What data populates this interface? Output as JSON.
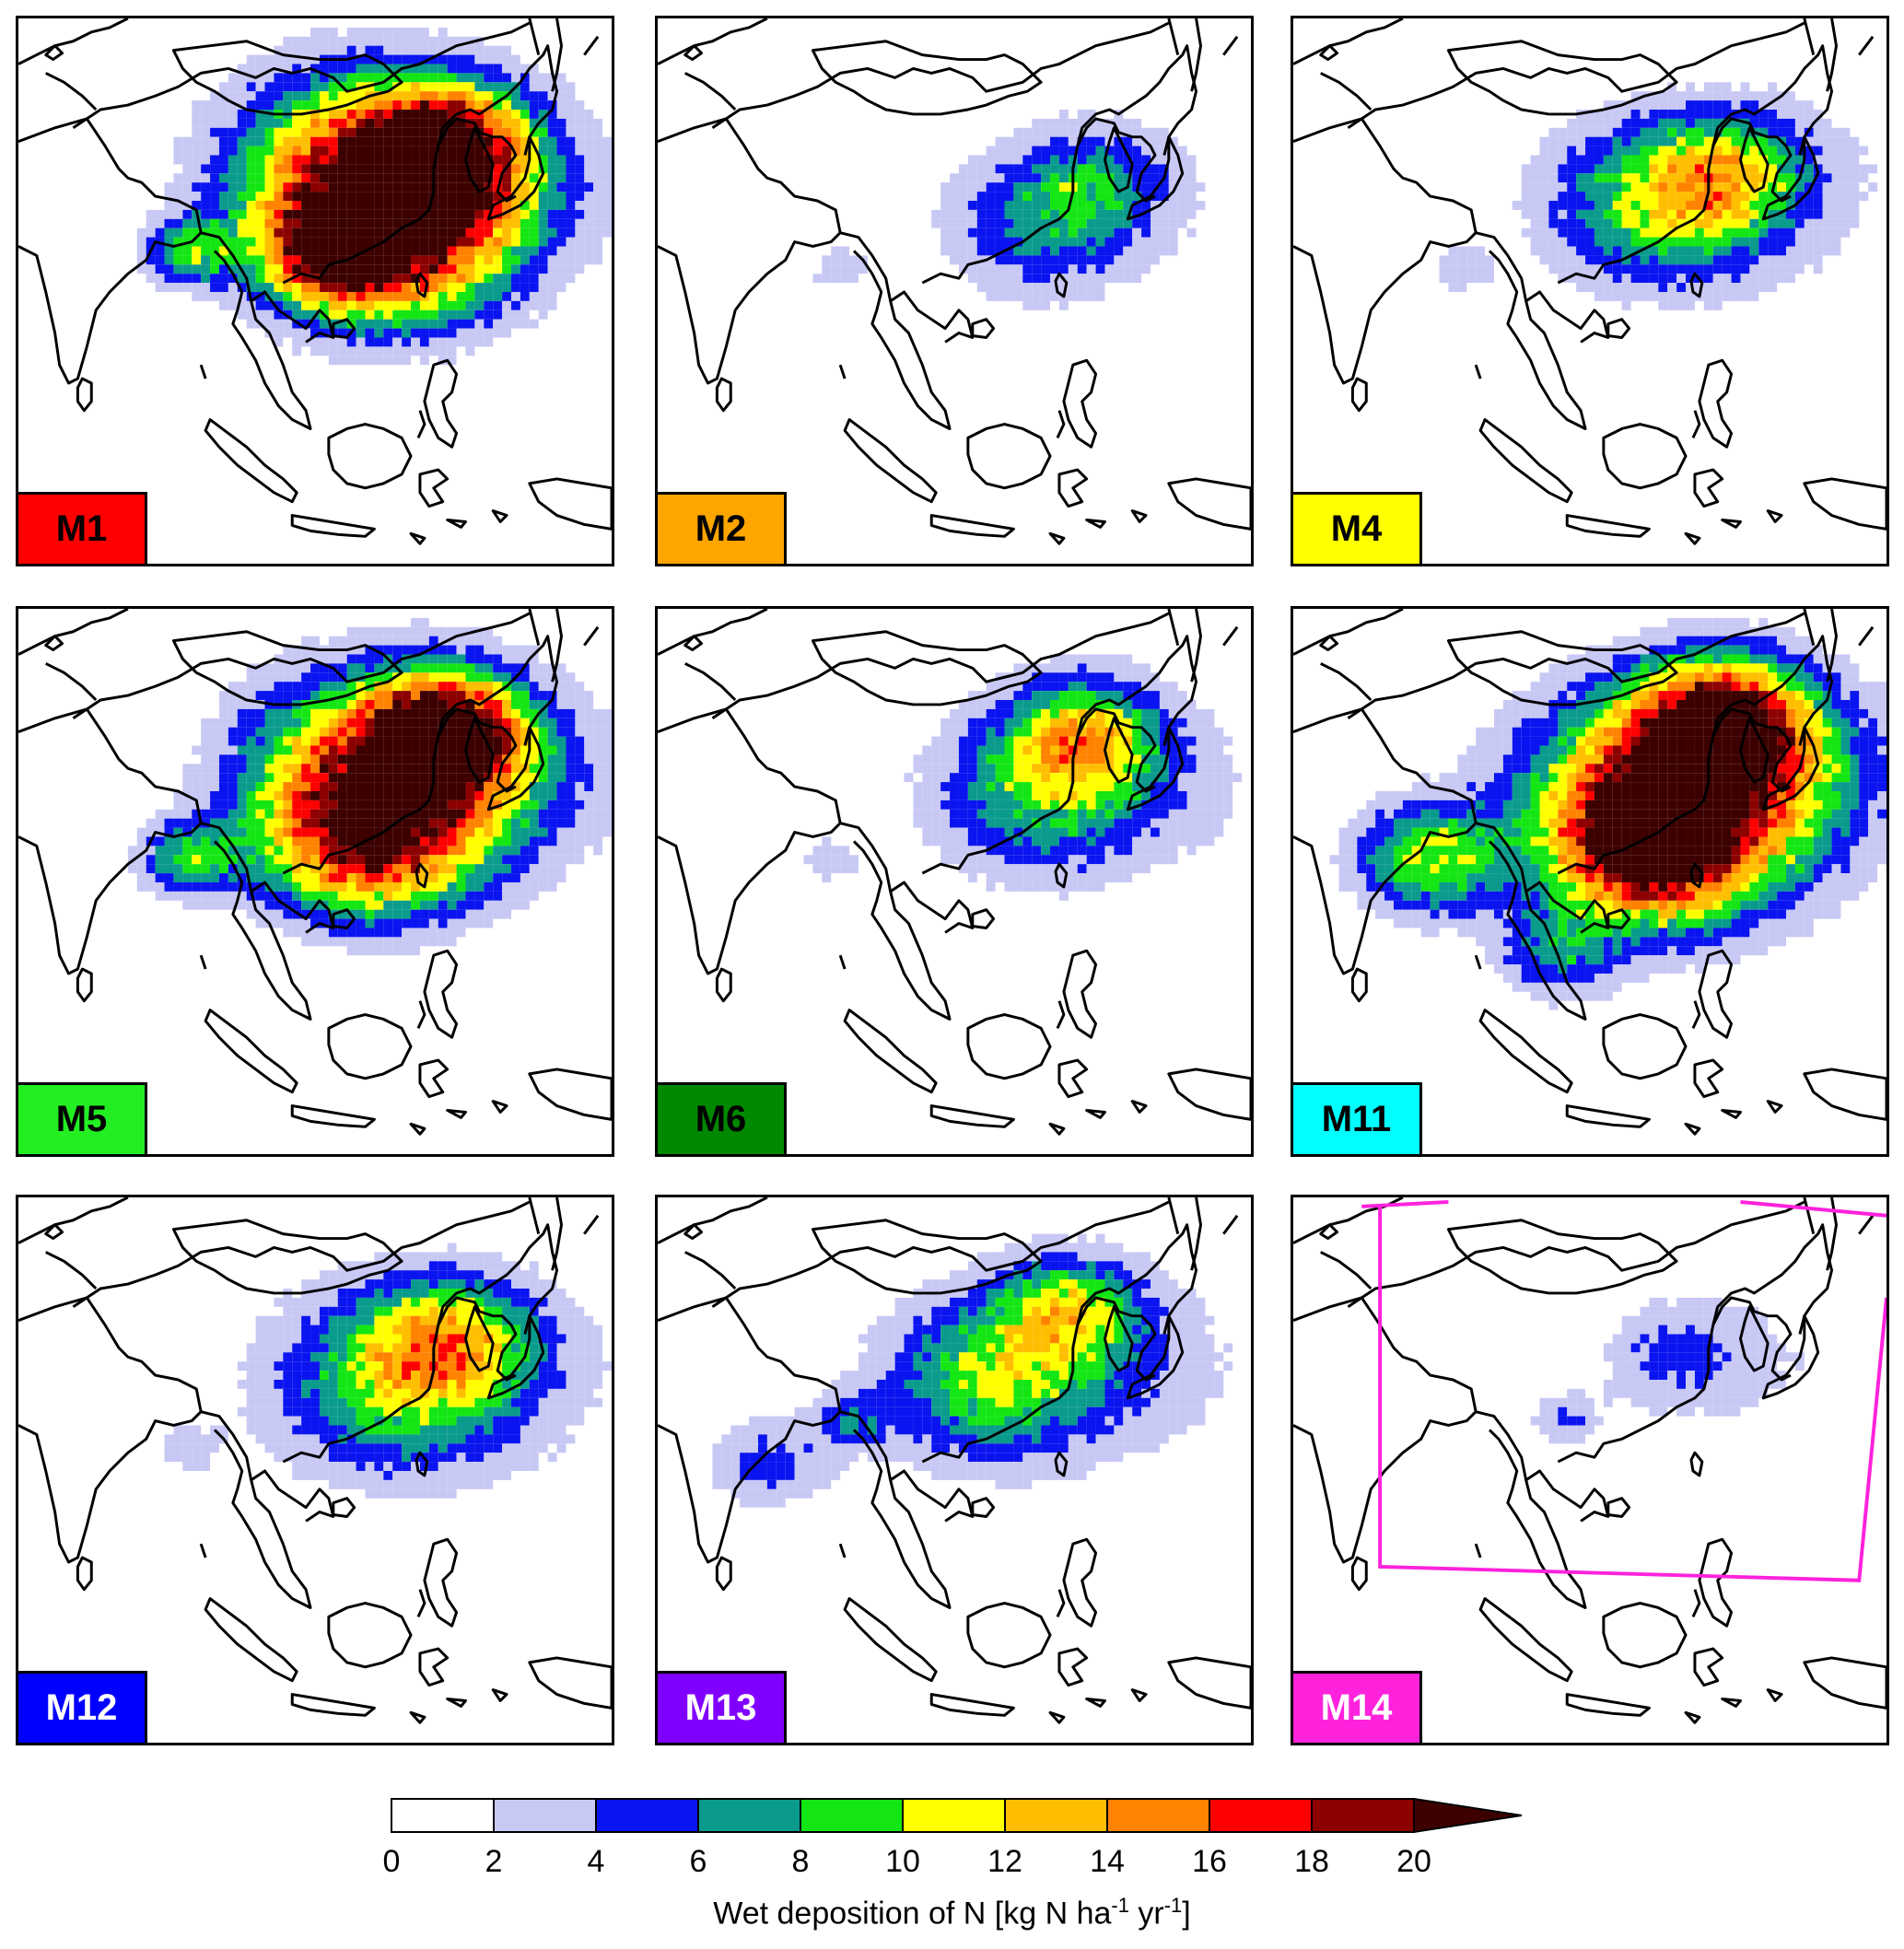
{
  "panels": [
    {
      "label": "M1",
      "label_color": "#ff0000",
      "text_color": "#000000",
      "hotspots": [
        [
          0.58,
          0.28,
          0.55,
          16
        ],
        [
          0.62,
          0.4,
          0.45,
          14
        ],
        [
          0.71,
          0.23,
          0.3,
          16
        ],
        [
          0.52,
          0.42,
          0.25,
          12
        ],
        [
          0.28,
          0.42,
          0.18,
          8
        ]
      ],
      "coverage": "high"
    },
    {
      "label": "M2",
      "label_color": "#ffa500",
      "text_color": "#000000",
      "hotspots": [
        [
          0.62,
          0.38,
          0.4,
          5
        ],
        [
          0.72,
          0.3,
          0.3,
          5
        ],
        [
          0.3,
          0.45,
          0.15,
          3
        ]
      ],
      "coverage": "low"
    },
    {
      "label": "M4",
      "label_color": "#ffff00",
      "text_color": "#000000",
      "hotspots": [
        [
          0.6,
          0.33,
          0.45,
          9
        ],
        [
          0.72,
          0.28,
          0.3,
          7
        ],
        [
          0.28,
          0.45,
          0.15,
          3
        ]
      ],
      "coverage": "medium"
    },
    {
      "label": "M5",
      "label_color": "#22ee22",
      "text_color": "#000000",
      "hotspots": [
        [
          0.6,
          0.3,
          0.55,
          15
        ],
        [
          0.71,
          0.22,
          0.3,
          18
        ],
        [
          0.58,
          0.42,
          0.4,
          13
        ],
        [
          0.28,
          0.45,
          0.2,
          8
        ]
      ],
      "coverage": "high"
    },
    {
      "label": "M6",
      "label_color": "#008800",
      "text_color": "#000000",
      "hotspots": [
        [
          0.63,
          0.33,
          0.45,
          7
        ],
        [
          0.71,
          0.22,
          0.3,
          9
        ],
        [
          0.28,
          0.45,
          0.15,
          3
        ]
      ],
      "coverage": "medium"
    },
    {
      "label": "M11",
      "label_color": "#00ffff",
      "text_color": "#000000",
      "hotspots": [
        [
          0.62,
          0.35,
          0.6,
          15
        ],
        [
          0.71,
          0.21,
          0.35,
          19
        ],
        [
          0.6,
          0.42,
          0.35,
          18
        ],
        [
          0.22,
          0.45,
          0.3,
          10
        ],
        [
          0.44,
          0.62,
          0.25,
          6
        ]
      ],
      "coverage": "very_high"
    },
    {
      "label": "M12",
      "label_color": "#0000ff",
      "text_color": "#ffffff",
      "hotspots": [
        [
          0.62,
          0.33,
          0.5,
          9
        ],
        [
          0.72,
          0.25,
          0.3,
          8
        ],
        [
          0.28,
          0.45,
          0.15,
          3
        ]
      ],
      "coverage": "medium"
    },
    {
      "label": "M13",
      "label_color": "#8000ff",
      "text_color": "#ffffff",
      "hotspots": [
        [
          0.55,
          0.33,
          0.45,
          9
        ],
        [
          0.68,
          0.2,
          0.3,
          9
        ],
        [
          0.18,
          0.48,
          0.25,
          5
        ],
        [
          0.32,
          0.4,
          0.15,
          5
        ]
      ],
      "coverage": "medium"
    },
    {
      "label": "M14",
      "label_color": "#ff22dd",
      "text_color": "#ffffff",
      "hotspots": [
        [
          0.63,
          0.28,
          0.3,
          4
        ],
        [
          0.45,
          0.4,
          0.15,
          4
        ]
      ],
      "coverage": "low",
      "domain_box": true
    }
  ],
  "colorbar": {
    "bins": [
      {
        "min": 0,
        "max": 2,
        "color": "#ffffff"
      },
      {
        "min": 2,
        "max": 4,
        "color": "#c8c8f5"
      },
      {
        "min": 4,
        "max": 6,
        "color": "#0a14f0"
      },
      {
        "min": 6,
        "max": 8,
        "color": "#0a9b8c"
      },
      {
        "min": 8,
        "max": 10,
        "color": "#14e614"
      },
      {
        "min": 10,
        "max": 12,
        "color": "#ffff00"
      },
      {
        "min": 12,
        "max": 14,
        "color": "#ffbe00"
      },
      {
        "min": 14,
        "max": 16,
        "color": "#ff8200"
      },
      {
        "min": 16,
        "max": 18,
        "color": "#ff0000"
      },
      {
        "min": 18,
        "max": 20,
        "color": "#8c0000"
      }
    ],
    "extend_color": "#3c0000",
    "ticks": [
      "0",
      "2",
      "4",
      "6",
      "8",
      "10",
      "12",
      "14",
      "16",
      "18",
      "20"
    ],
    "title_main": "Wet deposition of N [kg N ha",
    "title_exp1": "-1",
    "title_mid": " yr",
    "title_exp2": "-1",
    "title_end": "]"
  }
}
